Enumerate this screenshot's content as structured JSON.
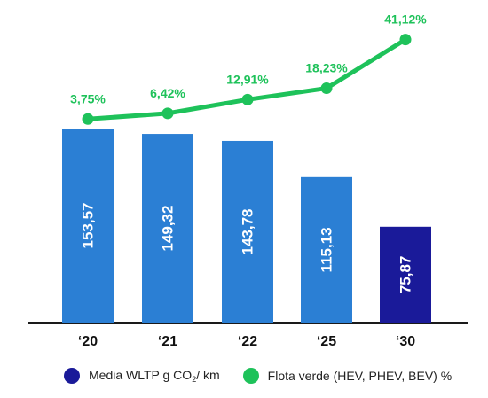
{
  "chart_data": {
    "type": "bar",
    "categories": [
      "‘20",
      "‘21",
      "‘22",
      "‘25",
      "‘30"
    ],
    "bar_series": {
      "name_prefix": "Media WLTP g CO",
      "name_sub": "2",
      "name_suffix": "/ km",
      "values": [
        153.57,
        149.32,
        143.78,
        115.13,
        75.87
      ],
      "labels": [
        "153,57",
        "149,32",
        "143,78",
        "115,13",
        "75,87"
      ],
      "colors": [
        "#2b7fd4",
        "#2b7fd4",
        "#2b7fd4",
        "#2b7fd4",
        "#1a1a99"
      ]
    },
    "line_series": {
      "name": "Flota verde (HEV, PHEV, BEV) %",
      "values": [
        3.75,
        6.42,
        12.91,
        18.23,
        41.12
      ],
      "labels": [
        "3,75%",
        "6,42%",
        "12,91%",
        "18,23%",
        "41,12%"
      ],
      "color": "#1ec25a"
    },
    "grid": false,
    "legend_position": "bottom",
    "legend_bar_color": "#1a1a99",
    "legend_line_color": "#1ec25a"
  }
}
